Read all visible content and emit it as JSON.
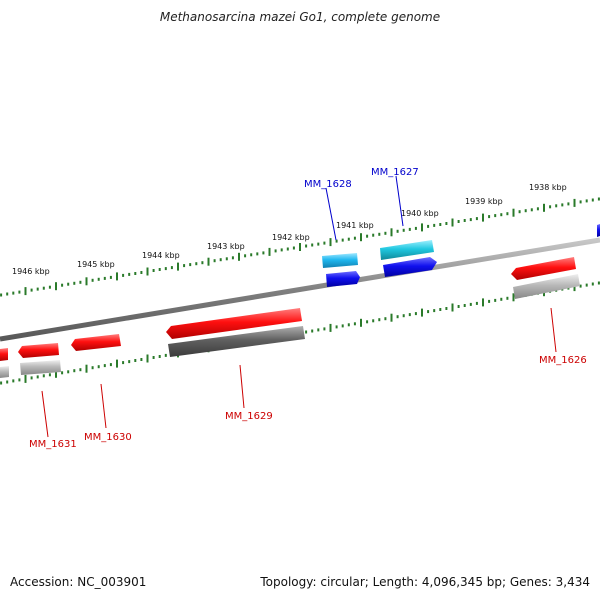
{
  "title": "Methanosarcina mazei Go1, complete genome",
  "footer": {
    "accession": "Accession: NC_003901",
    "stats": "Topology: circular; Length: 4,096,345 bp; Genes: 3,434"
  },
  "scale_labels": [
    "1946 kbp",
    "1945 kbp",
    "1944 kbp",
    "1943 kbp",
    "1942 kbp",
    "1941 kbp",
    "1940 kbp",
    "1939 kbp",
    "1938 kbp"
  ],
  "genes_top": [
    {
      "label": "MM_1628",
      "color": "#0000cc"
    },
    {
      "label": "MM_1627",
      "color": "#0000cc"
    }
  ],
  "genes_bottom": [
    {
      "label": "MM_1631",
      "color": "#cc0000"
    },
    {
      "label": "MM_1630",
      "color": "#cc0000"
    },
    {
      "label": "MM_1629",
      "color": "#cc0000"
    },
    {
      "label": "MM_1626",
      "color": "#cc0000"
    }
  ],
  "colors": {
    "backbone": "#808080",
    "ticks": "#2a7a2a",
    "reverse_strand": "#ee1111",
    "forward_strand": "#1010ee",
    "forward_light": "#20c8d8",
    "gray_feature": "#909090",
    "dark_feature": "#505050"
  }
}
